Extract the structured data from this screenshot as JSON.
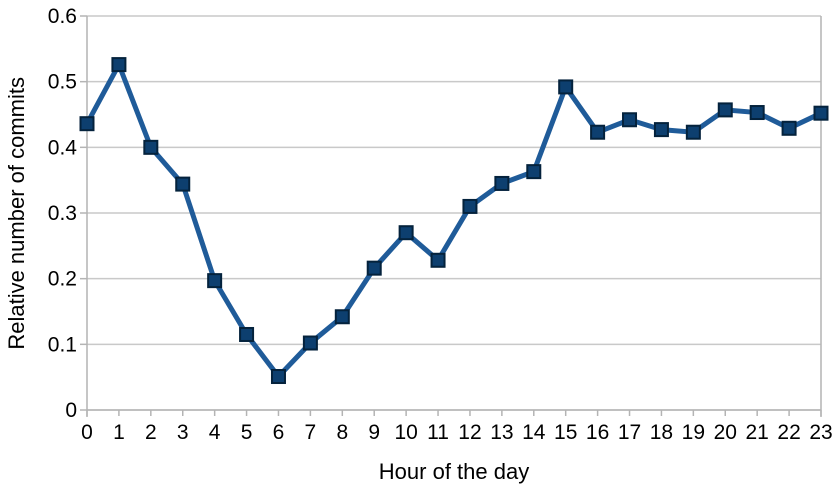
{
  "chart_data": {
    "type": "line",
    "title": "",
    "xlabel": "Hour of the day",
    "ylabel": "Relative number of commits",
    "series_name": "Relative number of commits",
    "categories": [
      0,
      1,
      2,
      3,
      4,
      5,
      6,
      7,
      8,
      9,
      10,
      11,
      12,
      13,
      14,
      15,
      16,
      17,
      18,
      19,
      20,
      21,
      22,
      23
    ],
    "values": [
      0.436,
      0.526,
      0.4,
      0.344,
      0.197,
      0.115,
      0.051,
      0.102,
      0.142,
      0.216,
      0.27,
      0.228,
      0.31,
      0.345,
      0.363,
      0.492,
      0.423,
      0.442,
      0.427,
      0.423,
      0.457,
      0.453,
      0.429,
      0.452
    ],
    "ylim": [
      0,
      0.6
    ],
    "yticks": [
      0,
      0.1,
      0.2,
      0.3,
      0.4,
      0.5,
      0.6
    ],
    "ytick_labels": [
      "0",
      "0.1",
      "0.2",
      "0.3",
      "0.4",
      "0.5",
      "0.6"
    ],
    "xtick_labels": [
      "0",
      "1",
      "2",
      "3",
      "4",
      "5",
      "6",
      "7",
      "8",
      "9",
      "10",
      "11",
      "12",
      "13",
      "14",
      "15",
      "16",
      "17",
      "18",
      "19",
      "20",
      "21",
      "22",
      "23"
    ],
    "grid": "horizontal",
    "legend": "none",
    "marker": "square",
    "colors": {
      "line": "#1f5b99",
      "marker_fill": "#0d3f6f",
      "marker_border": "#04223c",
      "grid": "#c9c9c9",
      "axis": "#b4b4b4",
      "text": "#000000",
      "background": "#ffffff"
    }
  }
}
